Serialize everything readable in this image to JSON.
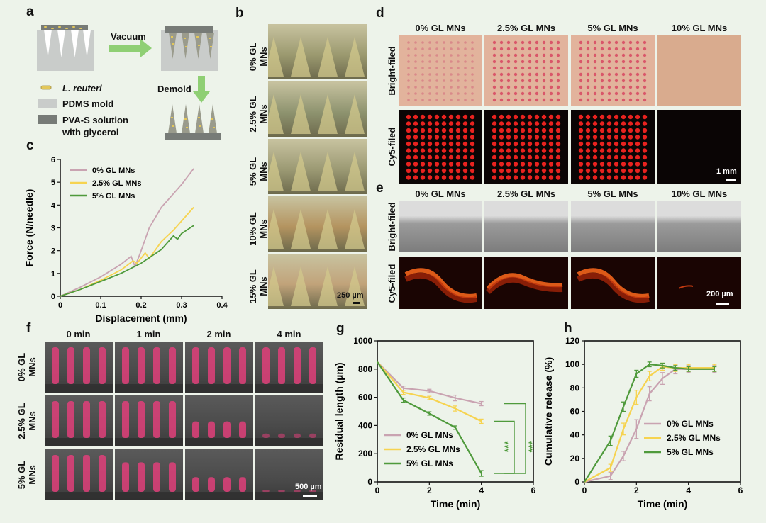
{
  "panels": {
    "a": "a",
    "b": "b",
    "c": "c",
    "d": "d",
    "e": "e",
    "f": "f",
    "g": "g",
    "h": "h"
  },
  "schematic": {
    "vacuum": "Vacuum",
    "demold": "Demold",
    "legend": [
      {
        "text": "L. reuteri",
        "italic": true
      },
      {
        "text": "PDMS mold"
      },
      {
        "text": "PVA-S solution"
      },
      {
        "text": "with glycerol"
      }
    ]
  },
  "panel_b": {
    "rows": [
      "0% GL MNs",
      "2.5% GL MNs",
      "5% GL MNs",
      "10% GL MNs",
      "15% GL MNs"
    ],
    "scale": "250 µm"
  },
  "panel_d": {
    "columns": [
      "0% GL MNs",
      "2.5% GL MNs",
      "5% GL MNs",
      "10% GL MNs"
    ],
    "rows": [
      "Bright-filed",
      "Cy5-filed"
    ],
    "scale": "1 mm"
  },
  "panel_e": {
    "columns": [
      "0% GL MNs",
      "2.5% GL MNs",
      "5% GL MNs",
      "10% GL MNs"
    ],
    "rows": [
      "Bright-filed",
      "Cy5-filed"
    ],
    "scale": "200 µm"
  },
  "panel_f": {
    "columns": [
      "0 min",
      "1 min",
      "2 min",
      "4 min"
    ],
    "rows": [
      "0% GL MNs",
      "2.5% GL MNs",
      "5% GL MNs"
    ],
    "scale": "500 µm"
  },
  "colors": {
    "gl0": "#c9a3b1",
    "gl25": "#f6d350",
    "gl5": "#4f9a3c",
    "arrow": "#8fcf74",
    "bg": "#edf3ea"
  },
  "chart_data": [
    {
      "id": "c",
      "type": "line",
      "xlabel": "Displacement (mm)",
      "ylabel": "Force (N/needle)",
      "xlim": [
        0,
        0.4
      ],
      "ylim": [
        0,
        6
      ],
      "xticks": [
        "0",
        "0.1",
        "0.2",
        "0.3",
        "0.4"
      ],
      "yticks": [
        "0",
        "1",
        "2",
        "3",
        "4",
        "5",
        "6"
      ],
      "legend_position": "top-left",
      "series": [
        {
          "name": "0% GL MNs",
          "x": [
            0,
            0.05,
            0.1,
            0.15,
            0.175,
            0.185,
            0.2,
            0.22,
            0.25,
            0.28,
            0.3,
            0.33
          ],
          "y": [
            0,
            0.4,
            0.85,
            1.4,
            1.75,
            1.3,
            2.0,
            3.0,
            3.9,
            4.5,
            4.9,
            5.6
          ]
        },
        {
          "name": "2.5% GL MNs",
          "x": [
            0,
            0.05,
            0.1,
            0.15,
            0.18,
            0.19,
            0.21,
            0.22,
            0.25,
            0.28,
            0.3,
            0.33
          ],
          "y": [
            0,
            0.3,
            0.7,
            1.15,
            1.55,
            1.45,
            1.9,
            1.65,
            2.4,
            2.9,
            3.3,
            3.9
          ]
        },
        {
          "name": "5% GL MNs",
          "x": [
            0,
            0.05,
            0.1,
            0.15,
            0.2,
            0.25,
            0.28,
            0.29,
            0.3,
            0.33
          ],
          "y": [
            0,
            0.3,
            0.65,
            1.0,
            1.45,
            2.05,
            2.65,
            2.5,
            2.75,
            3.1
          ]
        }
      ]
    },
    {
      "id": "g",
      "type": "line",
      "xlabel": "Time (min)",
      "ylabel": "Residual length (µm)",
      "xlim": [
        0,
        6
      ],
      "ylim": [
        0,
        1000
      ],
      "xticks": [
        "0",
        "2",
        "4",
        "6"
      ],
      "yticks": [
        "0",
        "200",
        "400",
        "600",
        "800",
        "1000"
      ],
      "legend_position": "bottom-left",
      "significance": [
        "***",
        "***"
      ],
      "series": [
        {
          "name": "0% GL MNs",
          "x": [
            0,
            1,
            2,
            3,
            4
          ],
          "y": [
            850,
            665,
            645,
            595,
            555
          ],
          "err": [
            0,
            15,
            12,
            20,
            15
          ]
        },
        {
          "name": "2.5% GL MNs",
          "x": [
            0,
            1,
            2,
            3,
            4
          ],
          "y": [
            850,
            635,
            595,
            520,
            430
          ],
          "err": [
            0,
            15,
            12,
            18,
            15
          ]
        },
        {
          "name": "5% GL MNs",
          "x": [
            0,
            1,
            2,
            3,
            4
          ],
          "y": [
            850,
            580,
            485,
            385,
            60
          ],
          "err": [
            0,
            15,
            12,
            12,
            20
          ]
        }
      ]
    },
    {
      "id": "h",
      "type": "line",
      "xlabel": "Time (min)",
      "ylabel": "Cumulative release (%)",
      "xlim": [
        0,
        6
      ],
      "ylim": [
        0,
        120
      ],
      "xticks": [
        "0",
        "2",
        "4",
        "6"
      ],
      "yticks": [
        "0",
        "20",
        "40",
        "60",
        "80",
        "100",
        "120"
      ],
      "legend_position": "bottom-right",
      "series": [
        {
          "name": "0% GL MNs",
          "x": [
            0,
            1,
            1.5,
            2,
            2.5,
            3,
            3.5,
            4,
            5
          ],
          "y": [
            0,
            5,
            22,
            45,
            75,
            88,
            96,
            96,
            96
          ],
          "err": [
            0,
            3,
            4,
            8,
            6,
            5,
            4,
            3,
            3
          ]
        },
        {
          "name": "2.5% GL MNs",
          "x": [
            0,
            1,
            1.5,
            2,
            2.5,
            3,
            3.5,
            4,
            5
          ],
          "y": [
            0,
            12,
            45,
            72,
            90,
            98,
            97,
            97,
            97
          ],
          "err": [
            0,
            3,
            5,
            6,
            4,
            3,
            3,
            3,
            3
          ]
        },
        {
          "name": "5% GL MNs",
          "x": [
            0,
            1,
            1.5,
            2,
            2.5,
            3,
            3.5,
            4,
            5
          ],
          "y": [
            0,
            35,
            64,
            92,
            100,
            99,
            97,
            96,
            96
          ],
          "err": [
            0,
            4,
            4,
            3,
            2,
            2,
            2,
            2,
            2
          ]
        }
      ]
    }
  ]
}
